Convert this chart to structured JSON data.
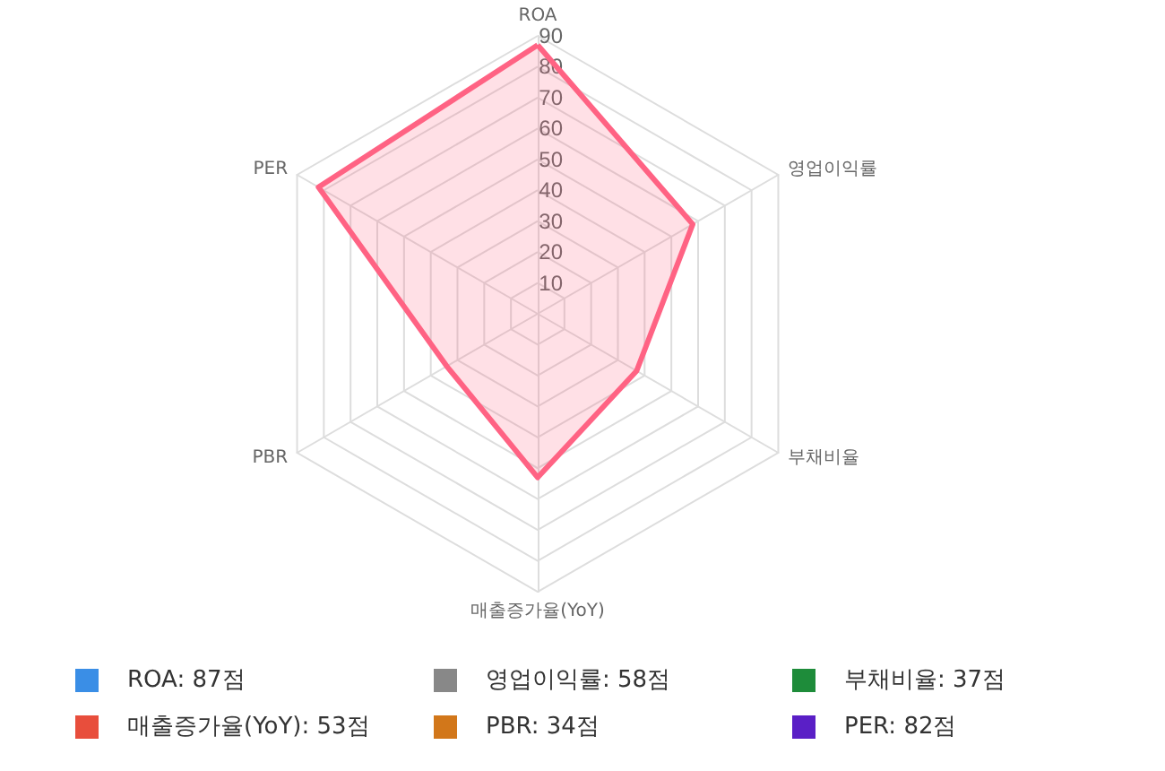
{
  "chart_data": {
    "type": "radar",
    "categories": [
      "ROA",
      "영업이익률",
      "부채비율",
      "매출증가율(YoY)",
      "PBR",
      "PER"
    ],
    "series": [
      {
        "color": "#ff6384",
        "values": [
          87,
          58,
          37,
          53,
          34,
          82
        ]
      }
    ],
    "ylim": [
      0,
      90
    ],
    "yticks": [
      10,
      20,
      30,
      40,
      50,
      60,
      70,
      80,
      90
    ],
    "grid": true,
    "annotations": [
      "ROA: 87점",
      "영업이익률: 58점",
      "부채비율: 37점",
      "매출증가율(YoY): 53점",
      "PBR: 34점",
      "PER: 82점"
    ],
    "colors": [
      "#3a8ee6",
      "#888888",
      "#1e8c3a",
      "#e84e3c",
      "#d2771a",
      "#5a1fc6"
    ]
  }
}
